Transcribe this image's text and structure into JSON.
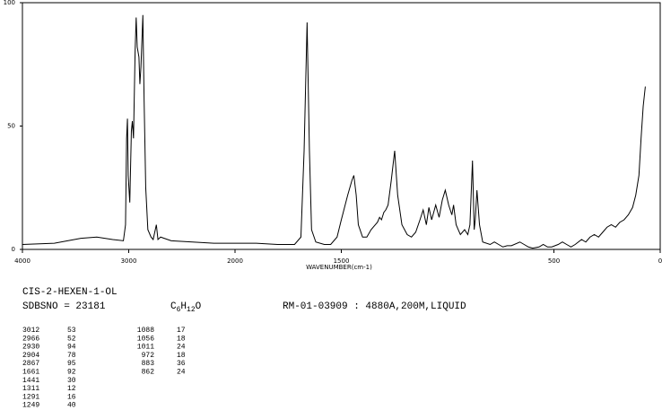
{
  "chart_data": {
    "type": "line",
    "x_label": "WAVENUMBER(cm-1)",
    "xlim": [
      4000,
      0
    ],
    "xticks": [
      4000,
      3000,
      2000,
      1500,
      500,
      0
    ],
    "ylim": [
      0,
      100
    ],
    "yticks": [
      0,
      50,
      100
    ],
    "color": "#000000",
    "x": [
      4000,
      3700,
      3450,
      3300,
      3150,
      3050,
      3030,
      3020,
      3012,
      3005,
      2990,
      2975,
      2966,
      2955,
      2940,
      2930,
      2920,
      2904,
      2895,
      2885,
      2867,
      2855,
      2840,
      2820,
      2790,
      2770,
      2740,
      2725,
      2700,
      2600,
      2400,
      2200,
      2000,
      1900,
      1800,
      1720,
      1690,
      1675,
      1661,
      1650,
      1640,
      1620,
      1580,
      1550,
      1520,
      1500,
      1470,
      1450,
      1441,
      1430,
      1420,
      1400,
      1380,
      1360,
      1330,
      1320,
      1311,
      1300,
      1291,
      1280,
      1265,
      1249,
      1235,
      1215,
      1190,
      1170,
      1150,
      1130,
      1115,
      1100,
      1088,
      1075,
      1056,
      1040,
      1025,
      1011,
      995,
      980,
      972,
      960,
      940,
      920,
      905,
      895,
      883,
      875,
      870,
      862,
      850,
      835,
      800,
      780,
      760,
      740,
      720,
      700,
      660,
      640,
      620,
      600,
      570,
      550,
      530,
      510,
      480,
      460,
      440,
      420,
      400,
      370,
      350,
      330,
      310,
      290,
      270,
      250,
      230,
      210,
      190,
      170,
      150,
      130,
      115,
      100,
      90,
      80,
      70
    ],
    "values": [
      2,
      2.5,
      4.5,
      5,
      4,
      3.5,
      10,
      45,
      53,
      30,
      19,
      48,
      52,
      45,
      80,
      94,
      82,
      78,
      67,
      74,
      95,
      60,
      25,
      8,
      5,
      4,
      10,
      4,
      5,
      3.5,
      3,
      2.5,
      2.5,
      2.5,
      2,
      2,
      5,
      40,
      92,
      40,
      8,
      3,
      2,
      2,
      5,
      12,
      22,
      28,
      30,
      22,
      10,
      5,
      5,
      8,
      11,
      13,
      12,
      15,
      16,
      18,
      28,
      40,
      22,
      10,
      6,
      5,
      7,
      12,
      16,
      10,
      17,
      12,
      18,
      13,
      20,
      24,
      18,
      14,
      18,
      10,
      6,
      8,
      6,
      10,
      36,
      8,
      12,
      24,
      10,
      3,
      2,
      3,
      2,
      1,
      1.5,
      1.5,
      3,
      2,
      1,
      0.5,
      1,
      2,
      1,
      1,
      2,
      3,
      2,
      1,
      2,
      4,
      3,
      5,
      6,
      5,
      7,
      9,
      10,
      9,
      11,
      12,
      14,
      17,
      22,
      30,
      45,
      58,
      66
    ]
  },
  "compound": "CIS-2-HEXEN-1-OL",
  "sdbs_no": "SDBSNO = 23181",
  "formula": [
    "C",
    "6",
    "H",
    "12",
    "O"
  ],
  "conditions": "RM-01-03909 : 4880A,200M,LIQUID",
  "peaks": {
    "columns": [
      [
        [
          3012,
          53
        ],
        [
          2966,
          52
        ],
        [
          2930,
          94
        ],
        [
          2904,
          78
        ],
        [
          2867,
          95
        ],
        [
          1661,
          92
        ],
        [
          1441,
          30
        ],
        [
          1311,
          12
        ],
        [
          1291,
          16
        ],
        [
          1249,
          40
        ]
      ],
      [
        [
          1088,
          17
        ],
        [
          1056,
          18
        ],
        [
          1011,
          24
        ],
        [
          972,
          18
        ],
        [
          883,
          36
        ],
        [
          862,
          24
        ]
      ]
    ]
  }
}
